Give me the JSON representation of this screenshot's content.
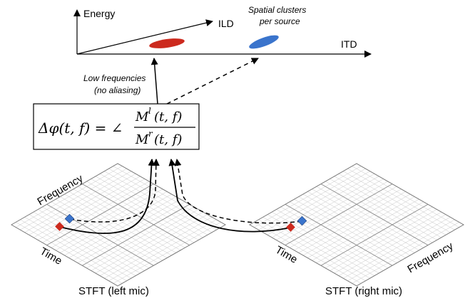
{
  "feature_space": {
    "energy_label": "Energy",
    "ild_label": "ILD",
    "itd_label": "ITD",
    "cluster_note_line1": "Spatial clusters",
    "cluster_note_line2": "per source",
    "cluster_colors": [
      "#cc2a1e",
      "#3a74cc"
    ]
  },
  "arrow_note": {
    "line1": "Low frequencies",
    "line2": "(no aliasing)"
  },
  "formula": {
    "lhs": "Δφ(t, f) = ∠",
    "num_base": "M",
    "num_sup": "l",
    "num_args": "(t, f)",
    "den_base": "M",
    "den_sup": "r",
    "den_args": "(t, f)"
  },
  "left_stft": {
    "caption": "STFT (left mic)",
    "axis_frequency": "Frequency",
    "axis_time": "Time"
  },
  "right_stft": {
    "caption": "STFT (right mic)",
    "axis_frequency": "Frequency",
    "axis_time": "Time"
  },
  "bin_colors": {
    "red": "#cc2a1e",
    "blue": "#3a74cc"
  }
}
